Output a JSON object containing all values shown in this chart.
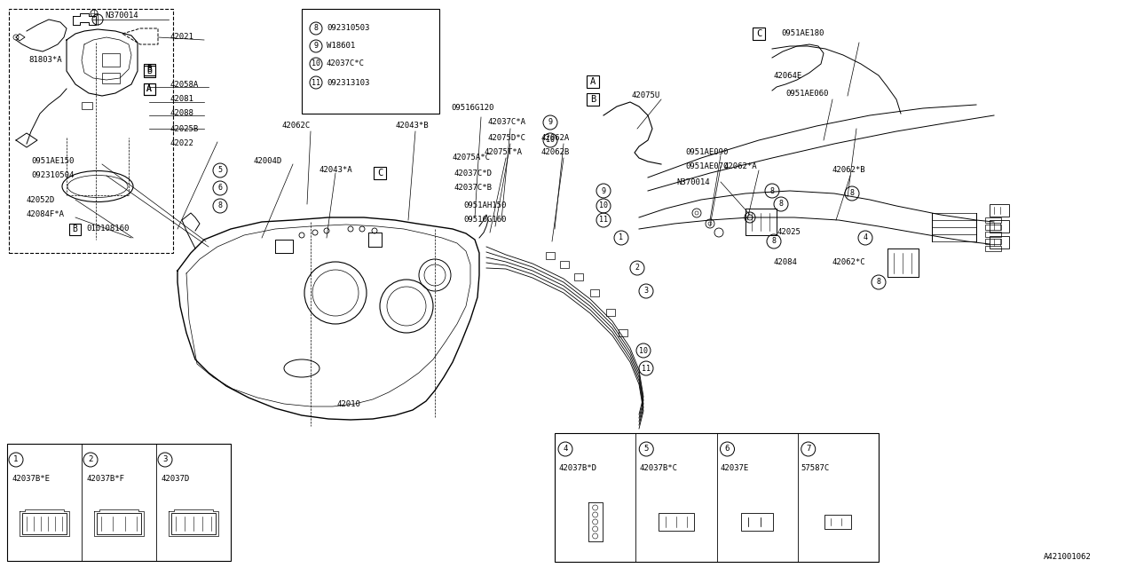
{
  "background_color": "#ffffff",
  "line_color": "#000000",
  "footer_text": "A421001062",
  "legend_items": [
    {
      "num": "8",
      "label": "092310503"
    },
    {
      "num": "9",
      "label": "W18601"
    },
    {
      "num": "10",
      "label": "42037C*C"
    },
    {
      "num": "11",
      "label": "092313103"
    }
  ],
  "bottom_left_items": [
    {
      "num": "1",
      "label": "42037B*E"
    },
    {
      "num": "2",
      "label": "42037B*F"
    },
    {
      "num": "3",
      "label": "42037D"
    }
  ],
  "bottom_right_items": [
    {
      "num": "4",
      "label": "42037B*D"
    },
    {
      "num": "5",
      "label": "42037B*C"
    },
    {
      "num": "6",
      "label": "42037E"
    },
    {
      "num": "7",
      "label": "57587C"
    }
  ]
}
